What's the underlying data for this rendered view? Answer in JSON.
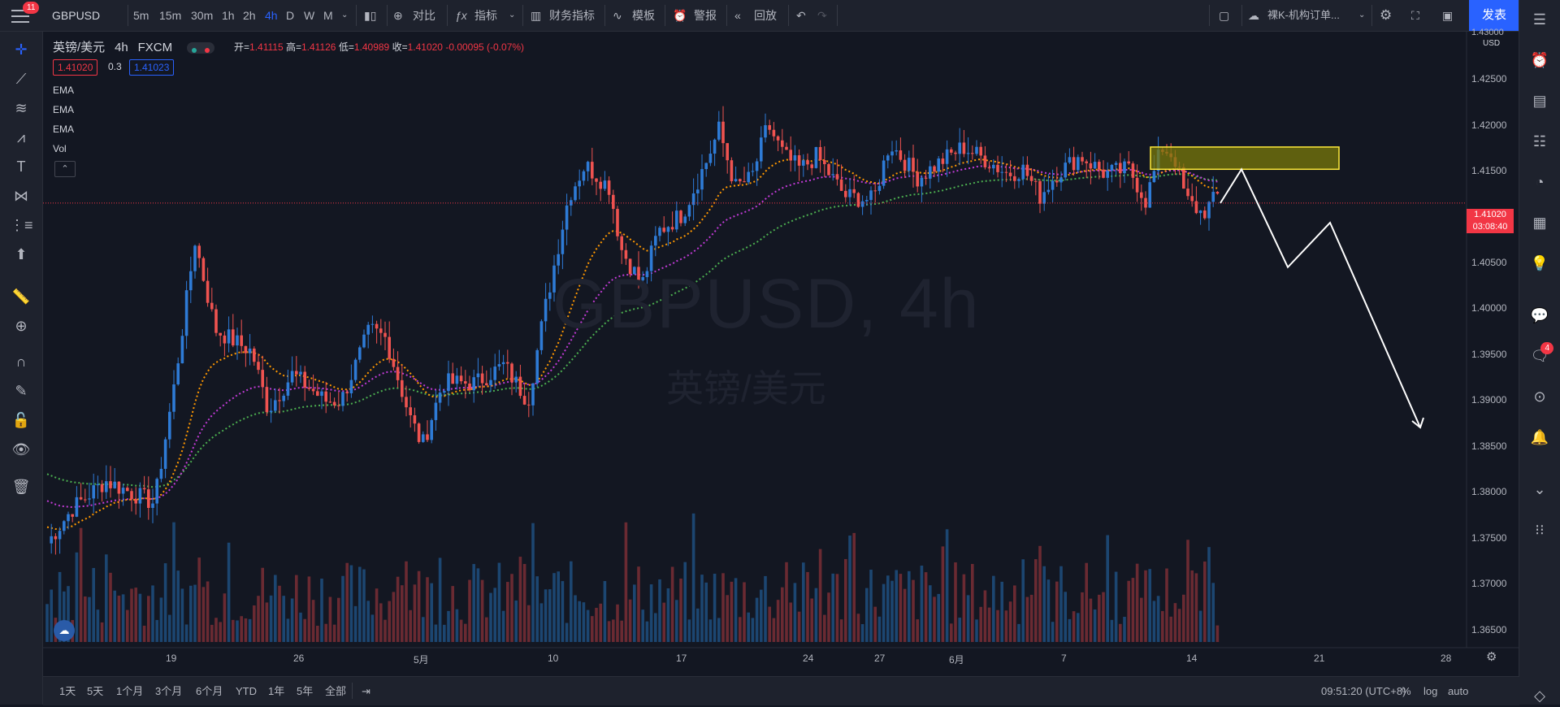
{
  "topbar": {
    "notif_count": "11",
    "symbol": "GBPUSD",
    "intervals": [
      "5m",
      "15m",
      "30m",
      "1h",
      "2h",
      "4h",
      "D",
      "W",
      "M"
    ],
    "active_interval": "4h",
    "compare": "对比",
    "indicators": "指标",
    "financials": "财务指标",
    "templates": "模板",
    "alert": "警报",
    "replay": "回放",
    "layout_name": "裸K-机构订单...",
    "publish": "发表"
  },
  "legend": {
    "pair": "英镑/美元",
    "interval": "4h",
    "broker": "FXCM",
    "open_label": "开=",
    "open": "1.41115",
    "high_label": "高=",
    "high": "1.41126",
    "low_label": "低=",
    "low": "1.40989",
    "close_label": "收=",
    "close": "1.41020",
    "change": "-0.00095 (-0.07%)",
    "bid": "1.41020",
    "spread": "0.3",
    "ask": "1.41023",
    "indicators": [
      "EMA",
      "EMA",
      "EMA",
      "Vol"
    ]
  },
  "watermark": {
    "symbol": "GBPUSD, 4h",
    "name": "英镑/美元"
  },
  "price_axis": {
    "currency": "USD",
    "labels": [
      "1.42500",
      "1.42000",
      "1.41500",
      "1.40500",
      "1.40000",
      "1.39500",
      "1.39000",
      "1.38500",
      "1.38000",
      "1.37500",
      "1.37000",
      "1.36500"
    ],
    "last_price": "1.41020",
    "countdown": "03:08:40",
    "top_partial": "1.43000"
  },
  "time_axis": {
    "labels": [
      "19",
      "26",
      "5月",
      "10",
      "17",
      "24",
      "27",
      "6月",
      "7",
      "14",
      "21",
      "28"
    ]
  },
  "bottombar": {
    "ranges": [
      "1天",
      "5天",
      "1个月",
      "3个月",
      "6个月",
      "YTD",
      "1年",
      "5年",
      "全部"
    ],
    "clock": "09:51:20 (UTC+8)",
    "percent": "%",
    "log": "log",
    "auto": "auto"
  },
  "rightbar": {
    "chat_badge": "4"
  },
  "colors": {
    "up": "#2e7bd6",
    "down": "#ef5350",
    "ema_fast": "#ff9800",
    "ema_mid": "#c13bd6",
    "ema_slow": "#4caf50",
    "zone": "#7a7a0a",
    "zone_border": "#ffeb3b",
    "projection": "#ffffff",
    "accent": "#2962ff"
  },
  "chart_data": {
    "type": "candlestick",
    "symbol": "GBPUSD",
    "price_range": [
      1.362,
      1.43
    ],
    "annotations": {
      "supply_zone": {
        "price_top": 1.4165,
        "price_bottom": 1.414
      },
      "projection_path_prices": [
        1.4102,
        1.414,
        1.403,
        1.408,
        1.385
      ]
    }
  }
}
